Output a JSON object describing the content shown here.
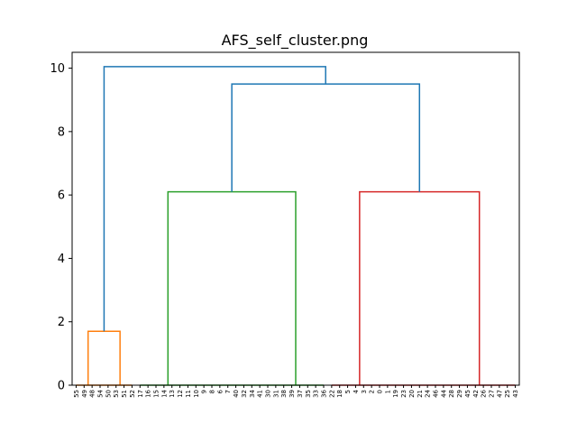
{
  "chart_data": {
    "type": "dendrogram",
    "title": "AFS_self_cluster.png",
    "xlabel": "",
    "ylabel": "",
    "ylim": [
      0,
      10.5
    ],
    "yticks": [
      0,
      2,
      4,
      6,
      8,
      10
    ],
    "grid": false,
    "leaves": [
      "55",
      "49",
      "48",
      "54",
      "50",
      "53",
      "51",
      "52",
      "17",
      "16",
      "15",
      "14",
      "13",
      "12",
      "11",
      "10",
      "9",
      "8",
      "6",
      "7",
      "40",
      "32",
      "34",
      "41",
      "30",
      "31",
      "38",
      "39",
      "37",
      "35",
      "33",
      "36",
      "22",
      "18",
      "5",
      "4",
      "3",
      "2",
      "0",
      "1",
      "19",
      "23",
      "20",
      "21",
      "24",
      "46",
      "44",
      "28",
      "29",
      "45",
      "42",
      "26",
      "27",
      "47",
      "25",
      "43"
    ],
    "clusters": [
      {
        "color": "#ff7f0e",
        "leaves": [
          0,
          1,
          2,
          3,
          4,
          5,
          6,
          7
        ]
      },
      {
        "color": "#2ca02c",
        "leaves": [
          8,
          9,
          10,
          11,
          12,
          13,
          14,
          15,
          16,
          17,
          18,
          19,
          20,
          21,
          22,
          23,
          24,
          25,
          26,
          27,
          28,
          29,
          30,
          31
        ]
      },
      {
        "color": "#d62728",
        "leaves": [
          32,
          33,
          34,
          35,
          36,
          37,
          38,
          39,
          40,
          41,
          42,
          43,
          44,
          45,
          46,
          47,
          48,
          49,
          50,
          51,
          52,
          53,
          54,
          55
        ]
      }
    ],
    "links": [
      {
        "color": "#ff7f0e",
        "left": 1.5,
        "right": 5.5,
        "yl": 0,
        "yr": 0,
        "height": 1.7
      },
      {
        "color": "#2ca02c",
        "left": 11.5,
        "right": 27.5,
        "yl": 0,
        "yr": 0,
        "height": 6.1
      },
      {
        "color": "#d62728",
        "left": 35.5,
        "right": 50.5,
        "yl": 0,
        "yr": 0,
        "height": 6.1
      },
      {
        "color": "#1f77b4",
        "left": 19.5,
        "right": 43.0,
        "yl": 6.1,
        "yr": 6.1,
        "height": 9.5
      },
      {
        "color": "#1f77b4",
        "left": 3.5,
        "right": 31.25,
        "yl": 1.7,
        "yr": 9.5,
        "height": 10.05
      }
    ]
  }
}
